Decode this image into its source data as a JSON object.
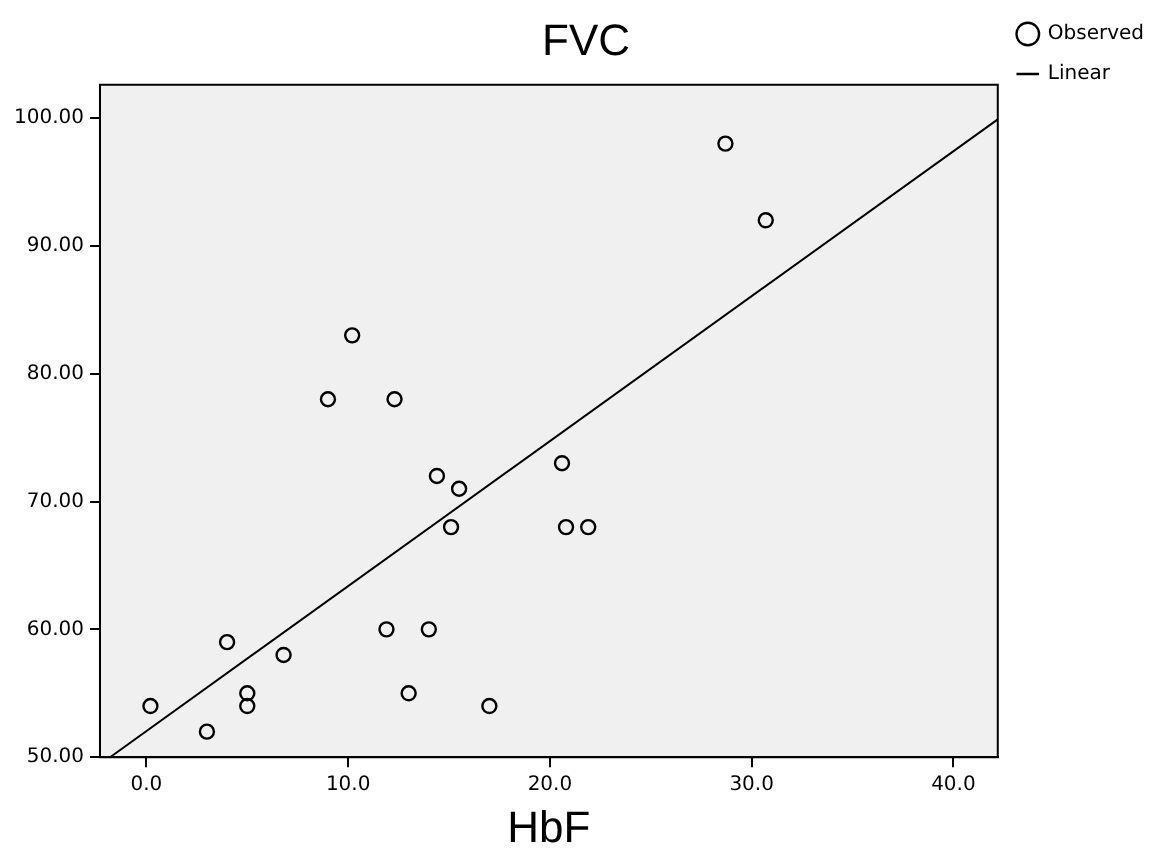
{
  "chart_data": {
    "type": "scatter",
    "title": "FVC",
    "xlabel": "HbF",
    "legend": "top right",
    "grid": false,
    "marker": "circle",
    "xlim": [
      -2.3,
      42.2
    ],
    "ylim": [
      50,
      102.6
    ],
    "xticks": [
      {
        "value": 0,
        "label": "0.0"
      },
      {
        "value": 10,
        "label": "10.0"
      },
      {
        "value": 20,
        "label": "20.0"
      },
      {
        "value": 30,
        "label": "30.0"
      },
      {
        "value": 40,
        "label": "40.0"
      }
    ],
    "yticks": [
      {
        "value": 50,
        "label": "50.00"
      },
      {
        "value": 60,
        "label": "60.00"
      },
      {
        "value": 70,
        "label": "70.00"
      },
      {
        "value": 80,
        "label": "80.00"
      },
      {
        "value": 90,
        "label": "90.00"
      },
      {
        "value": 100,
        "label": "100.00"
      }
    ],
    "series": [
      {
        "name": "Observed",
        "color": "#000000",
        "x": [
          0.2,
          3.0,
          4.0,
          5.0,
          5.0,
          6.8,
          9.0,
          10.2,
          12.3,
          11.9,
          13.0,
          14.4,
          15.5,
          15.1,
          14.0,
          17.0,
          20.6,
          20.8,
          21.9,
          28.7,
          30.7
        ],
        "values": [
          54,
          52,
          59,
          55,
          54,
          58,
          78,
          83,
          78,
          60,
          55,
          72,
          71,
          68,
          60,
          54,
          73,
          68,
          68,
          98,
          92
        ]
      },
      {
        "name": "Linear",
        "type": "line",
        "marker": "none",
        "color": "#000000",
        "x": [
          -1.8,
          42.2
        ],
        "values": [
          50,
          99.9
        ]
      }
    ]
  }
}
